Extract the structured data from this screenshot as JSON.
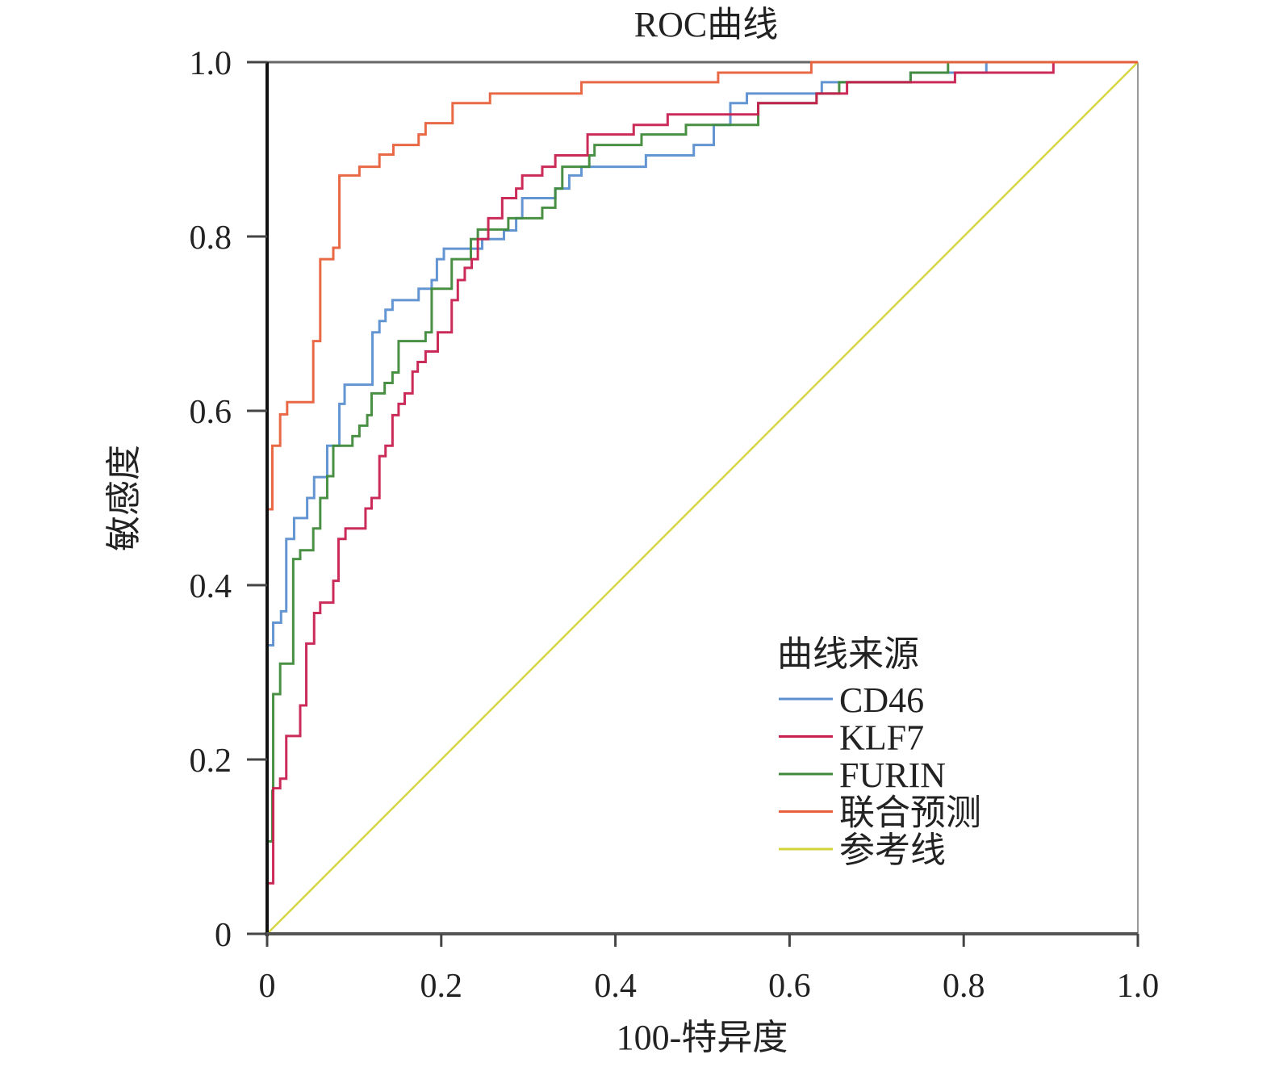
{
  "chart_data": {
    "type": "line",
    "title": "ROC曲线",
    "xlabel": "100-特异度",
    "ylabel": "敏感度",
    "xlim": [
      0,
      1
    ],
    "ylim": [
      0,
      1
    ],
    "xticks": [
      "0",
      "0.2",
      "0.4",
      "0.6",
      "0.8",
      "1.0"
    ],
    "xtick_values": [
      0,
      0.2,
      0.4,
      0.6,
      0.8,
      1.0
    ],
    "yticks": [
      "0",
      "0.2",
      "0.4",
      "0.6",
      "0.8",
      "1.0"
    ],
    "ytick_values": [
      0,
      0.2,
      0.4,
      0.6,
      0.8,
      1.0
    ],
    "grid": false,
    "legend_title": "曲线来源",
    "legend_position": "bottom-right",
    "series": [
      {
        "name": "CD46",
        "color": "#5b8fd0",
        "step": true,
        "points": [
          [
            0,
            0
          ],
          [
            0,
            0.331
          ],
          [
            0.007,
            0.357
          ],
          [
            0.016,
            0.37
          ],
          [
            0.022,
            0.453
          ],
          [
            0.031,
            0.477
          ],
          [
            0.046,
            0.5
          ],
          [
            0.054,
            0.524
          ],
          [
            0.069,
            0.56
          ],
          [
            0.083,
            0.608
          ],
          [
            0.089,
            0.63
          ],
          [
            0.121,
            0.69
          ],
          [
            0.129,
            0.703
          ],
          [
            0.136,
            0.716
          ],
          [
            0.144,
            0.727
          ],
          [
            0.174,
            0.74
          ],
          [
            0.189,
            0.75
          ],
          [
            0.195,
            0.774
          ],
          [
            0.203,
            0.786
          ],
          [
            0.247,
            0.797
          ],
          [
            0.272,
            0.807
          ],
          [
            0.286,
            0.821
          ],
          [
            0.293,
            0.844
          ],
          [
            0.331,
            0.855
          ],
          [
            0.347,
            0.87
          ],
          [
            0.361,
            0.88
          ],
          [
            0.435,
            0.893
          ],
          [
            0.49,
            0.905
          ],
          [
            0.513,
            0.928
          ],
          [
            0.532,
            0.953
          ],
          [
            0.551,
            0.964
          ],
          [
            0.637,
            0.977
          ],
          [
            0.739,
            0.988
          ],
          [
            0.826,
            1.0
          ],
          [
            1,
            1
          ]
        ]
      },
      {
        "name": "KLF7",
        "color": "#c8204f",
        "step": true,
        "points": [
          [
            0,
            0
          ],
          [
            0,
            0.058
          ],
          [
            0.007,
            0.167
          ],
          [
            0.015,
            0.178
          ],
          [
            0.022,
            0.227
          ],
          [
            0.038,
            0.262
          ],
          [
            0.045,
            0.333
          ],
          [
            0.054,
            0.368
          ],
          [
            0.061,
            0.38
          ],
          [
            0.076,
            0.405
          ],
          [
            0.082,
            0.453
          ],
          [
            0.09,
            0.465
          ],
          [
            0.113,
            0.488
          ],
          [
            0.12,
            0.5
          ],
          [
            0.129,
            0.548
          ],
          [
            0.136,
            0.56
          ],
          [
            0.144,
            0.595
          ],
          [
            0.151,
            0.608
          ],
          [
            0.158,
            0.62
          ],
          [
            0.167,
            0.645
          ],
          [
            0.173,
            0.656
          ],
          [
            0.182,
            0.668
          ],
          [
            0.196,
            0.69
          ],
          [
            0.212,
            0.727
          ],
          [
            0.219,
            0.75
          ],
          [
            0.227,
            0.764
          ],
          [
            0.235,
            0.774
          ],
          [
            0.242,
            0.797
          ],
          [
            0.254,
            0.821
          ],
          [
            0.27,
            0.844
          ],
          [
            0.286,
            0.855
          ],
          [
            0.293,
            0.87
          ],
          [
            0.316,
            0.88
          ],
          [
            0.331,
            0.893
          ],
          [
            0.368,
            0.917
          ],
          [
            0.421,
            0.928
          ],
          [
            0.46,
            0.94
          ],
          [
            0.564,
            0.953
          ],
          [
            0.631,
            0.964
          ],
          [
            0.666,
            0.977
          ],
          [
            0.79,
            0.988
          ],
          [
            0.903,
            1.0
          ],
          [
            1,
            1
          ]
        ]
      },
      {
        "name": "FURIN",
        "color": "#3f8a3a",
        "step": true,
        "points": [
          [
            0,
            0
          ],
          [
            0,
            0.106
          ],
          [
            0.006,
            0.164
          ],
          [
            0.007,
            0.275
          ],
          [
            0.015,
            0.31
          ],
          [
            0.03,
            0.43
          ],
          [
            0.038,
            0.44
          ],
          [
            0.053,
            0.465
          ],
          [
            0.061,
            0.5
          ],
          [
            0.069,
            0.525
          ],
          [
            0.076,
            0.56
          ],
          [
            0.098,
            0.571
          ],
          [
            0.106,
            0.583
          ],
          [
            0.115,
            0.595
          ],
          [
            0.12,
            0.62
          ],
          [
            0.135,
            0.632
          ],
          [
            0.144,
            0.644
          ],
          [
            0.151,
            0.68
          ],
          [
            0.182,
            0.69
          ],
          [
            0.189,
            0.74
          ],
          [
            0.212,
            0.774
          ],
          [
            0.234,
            0.797
          ],
          [
            0.242,
            0.808
          ],
          [
            0.277,
            0.821
          ],
          [
            0.316,
            0.833
          ],
          [
            0.331,
            0.855
          ],
          [
            0.339,
            0.88
          ],
          [
            0.37,
            0.893
          ],
          [
            0.376,
            0.905
          ],
          [
            0.43,
            0.917
          ],
          [
            0.481,
            0.928
          ],
          [
            0.564,
            0.953
          ],
          [
            0.631,
            0.964
          ],
          [
            0.657,
            0.977
          ],
          [
            0.739,
            0.988
          ],
          [
            0.782,
            1.0
          ],
          [
            1,
            1
          ]
        ]
      },
      {
        "name": "联合预测",
        "color": "#e8603c",
        "step": true,
        "points": [
          [
            0,
            0
          ],
          [
            0,
            0.487
          ],
          [
            0.006,
            0.56
          ],
          [
            0.015,
            0.596
          ],
          [
            0.023,
            0.61
          ],
          [
            0.053,
            0.68
          ],
          [
            0.061,
            0.774
          ],
          [
            0.076,
            0.787
          ],
          [
            0.083,
            0.87
          ],
          [
            0.106,
            0.88
          ],
          [
            0.129,
            0.894
          ],
          [
            0.145,
            0.905
          ],
          [
            0.174,
            0.917
          ],
          [
            0.182,
            0.93
          ],
          [
            0.213,
            0.953
          ],
          [
            0.256,
            0.964
          ],
          [
            0.361,
            0.977
          ],
          [
            0.518,
            0.988
          ],
          [
            0.625,
            1.0
          ],
          [
            1,
            1
          ]
        ]
      },
      {
        "name": "参考线",
        "color": "#d4d43a",
        "step": false,
        "points": [
          [
            0,
            0
          ],
          [
            1,
            1
          ]
        ]
      }
    ]
  }
}
